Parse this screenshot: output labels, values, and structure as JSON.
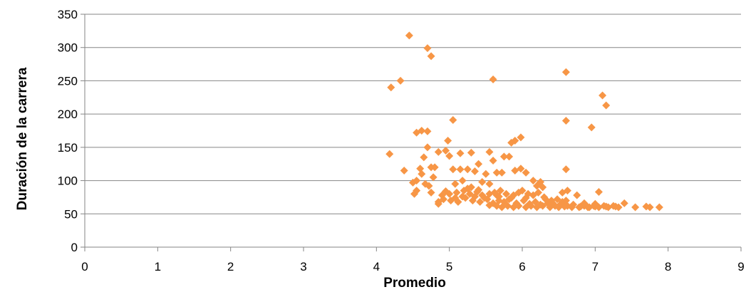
{
  "chart_data": {
    "type": "scatter",
    "title": "",
    "xlabel": "Promedio",
    "ylabel": "Duración de la carrera",
    "xlim": [
      0,
      9
    ],
    "ylim": [
      0,
      350
    ],
    "xticks": [
      0,
      1,
      2,
      3,
      4,
      5,
      6,
      7,
      8,
      9
    ],
    "yticks": [
      0,
      50,
      100,
      150,
      200,
      250,
      300,
      350
    ],
    "grid": "horizontal",
    "legend": "none",
    "marker": "diamond",
    "colors": {
      "marker": "#F79646",
      "grid": "#868686",
      "axis": "#868686"
    },
    "series": [
      {
        "points": [
          [
            4.45,
            318
          ],
          [
            4.7,
            299
          ],
          [
            4.75,
            287
          ],
          [
            4.33,
            250
          ],
          [
            4.2,
            240
          ],
          [
            5.6,
            252
          ],
          [
            6.6,
            263
          ],
          [
            7.1,
            228
          ],
          [
            7.15,
            213
          ],
          [
            5.05,
            191
          ],
          [
            6.6,
            190
          ],
          [
            6.95,
            180
          ],
          [
            4.55,
            172
          ],
          [
            4.62,
            175
          ],
          [
            4.7,
            174
          ],
          [
            5.98,
            165
          ],
          [
            5.9,
            160
          ],
          [
            5.85,
            157
          ],
          [
            4.98,
            160
          ],
          [
            4.7,
            150
          ],
          [
            4.85,
            143
          ],
          [
            4.95,
            145
          ],
          [
            5.15,
            141
          ],
          [
            5.3,
            142
          ],
          [
            5.55,
            143
          ],
          [
            4.18,
            140
          ],
          [
            4.65,
            135
          ],
          [
            5.0,
            137
          ],
          [
            5.75,
            136
          ],
          [
            5.82,
            136
          ],
          [
            5.6,
            130
          ],
          [
            5.4,
            125
          ],
          [
            4.75,
            120
          ],
          [
            4.8,
            120
          ],
          [
            4.6,
            118
          ],
          [
            5.05,
            117
          ],
          [
            5.15,
            117
          ],
          [
            5.25,
            117
          ],
          [
            5.35,
            114
          ],
          [
            5.65,
            112
          ],
          [
            5.72,
            112
          ],
          [
            5.9,
            115
          ],
          [
            5.98,
            118
          ],
          [
            6.05,
            112
          ],
          [
            6.6,
            117
          ],
          [
            4.38,
            115
          ],
          [
            4.62,
            110
          ],
          [
            5.5,
            110
          ],
          [
            6.15,
            100
          ],
          [
            6.25,
            98
          ],
          [
            4.78,
            105
          ],
          [
            4.55,
            100
          ],
          [
            4.5,
            97
          ],
          [
            4.67,
            95
          ],
          [
            4.72,
            92
          ],
          [
            5.08,
            95
          ],
          [
            5.18,
            100
          ],
          [
            5.45,
            98
          ],
          [
            5.3,
            90
          ],
          [
            5.55,
            95
          ],
          [
            6.2,
            92
          ],
          [
            6.28,
            90
          ],
          [
            6.55,
            82
          ],
          [
            6.62,
            85
          ],
          [
            7.05,
            83
          ],
          [
            6.75,
            78
          ],
          [
            4.55,
            85
          ],
          [
            4.52,
            80
          ],
          [
            4.75,
            82
          ],
          [
            4.9,
            78
          ],
          [
            5.0,
            80
          ],
          [
            5.1,
            82
          ],
          [
            5.2,
            85
          ],
          [
            5.28,
            80
          ],
          [
            5.38,
            83
          ],
          [
            5.45,
            78
          ],
          [
            5.55,
            80
          ],
          [
            5.62,
            82
          ],
          [
            5.7,
            85
          ],
          [
            5.78,
            80
          ],
          [
            5.88,
            78
          ],
          [
            5.95,
            82
          ],
          [
            6.0,
            85
          ],
          [
            6.08,
            80
          ],
          [
            6.15,
            78
          ],
          [
            6.22,
            82
          ],
          [
            6.3,
            75
          ],
          [
            6.4,
            70
          ],
          [
            6.48,
            72
          ],
          [
            6.55,
            68
          ],
          [
            4.85,
            68
          ],
          [
            4.92,
            72
          ],
          [
            5.02,
            70
          ],
          [
            5.12,
            68
          ],
          [
            5.22,
            74
          ],
          [
            5.32,
            70
          ],
          [
            5.42,
            68
          ],
          [
            5.52,
            72
          ],
          [
            5.6,
            66
          ],
          [
            5.68,
            70
          ],
          [
            5.75,
            68
          ],
          [
            5.82,
            72
          ],
          [
            5.92,
            66
          ],
          [
            6.02,
            70
          ],
          [
            6.1,
            65
          ],
          [
            6.18,
            68
          ],
          [
            6.25,
            64
          ],
          [
            6.35,
            66
          ],
          [
            6.45,
            62
          ],
          [
            6.52,
            64
          ],
          [
            6.62,
            62
          ],
          [
            6.7,
            64
          ],
          [
            6.78,
            60
          ],
          [
            6.85,
            62
          ],
          [
            6.92,
            60
          ],
          [
            6.98,
            62
          ],
          [
            7.05,
            60
          ],
          [
            7.12,
            62
          ],
          [
            7.18,
            60
          ],
          [
            7.25,
            62
          ],
          [
            7.32,
            60
          ],
          [
            7.4,
            66
          ],
          [
            7.55,
            60
          ],
          [
            7.7,
            61
          ],
          [
            7.75,
            60
          ],
          [
            7.88,
            60
          ],
          [
            4.85,
            65
          ],
          [
            5.55,
            63
          ],
          [
            5.65,
            62
          ],
          [
            5.72,
            60
          ],
          [
            5.8,
            62
          ],
          [
            5.88,
            60
          ],
          [
            5.95,
            62
          ],
          [
            6.05,
            60
          ],
          [
            6.12,
            62
          ],
          [
            6.2,
            60
          ],
          [
            6.28,
            62
          ],
          [
            6.38,
            60
          ],
          [
            6.5,
            60
          ],
          [
            6.58,
            61
          ],
          [
            6.68,
            60
          ],
          [
            6.8,
            61
          ],
          [
            6.9,
            60
          ],
          [
            7.0,
            61
          ],
          [
            7.15,
            61
          ],
          [
            7.28,
            61
          ],
          [
            7.0,
            65
          ],
          [
            6.85,
            66
          ],
          [
            5.35,
            76
          ],
          [
            5.48,
            74
          ],
          [
            5.65,
            78
          ],
          [
            5.85,
            74
          ],
          [
            6.05,
            74
          ],
          [
            6.32,
            72
          ],
          [
            5.25,
            88
          ],
          [
            5.4,
            86
          ],
          [
            5.18,
            76
          ],
          [
            5.08,
            74
          ],
          [
            4.95,
            84
          ],
          [
            5.68,
            76
          ],
          [
            6.42,
            66
          ],
          [
            6.6,
            70
          ]
        ]
      }
    ]
  }
}
